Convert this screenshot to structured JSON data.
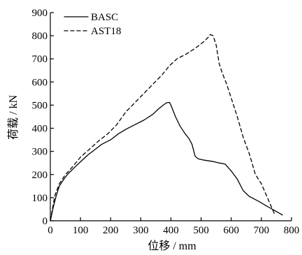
{
  "chart_data": {
    "type": "line",
    "title": "",
    "xlabel": "位移 / mm",
    "ylabel": "荷载 / kN",
    "xlim": [
      0,
      800
    ],
    "ylim": [
      0,
      900
    ],
    "xticks": [
      0,
      100,
      200,
      300,
      400,
      500,
      600,
      700,
      800
    ],
    "yticks": [
      0,
      100,
      200,
      300,
      400,
      500,
      600,
      700,
      800,
      900
    ],
    "grid": false,
    "legend_position": "top-left",
    "series": [
      {
        "name": "BASC",
        "style": "solid",
        "color": "#000000",
        "x": [
          0,
          10,
          20,
          30,
          45,
          60,
          80,
          100,
          125,
          150,
          170,
          200,
          225,
          250,
          280,
          310,
          340,
          360,
          375,
          385,
          395,
          400,
          415,
          430,
          445,
          460,
          470,
          480,
          490,
          510,
          540,
          560,
          580,
          600,
          620,
          640,
          660,
          690,
          720,
          750,
          770
        ],
        "y": [
          0,
          60,
          110,
          150,
          180,
          205,
          230,
          255,
          285,
          310,
          330,
          350,
          375,
          395,
          415,
          435,
          460,
          485,
          500,
          510,
          512,
          500,
          450,
          410,
          380,
          355,
          330,
          280,
          268,
          262,
          256,
          250,
          245,
          215,
          180,
          130,
          105,
          85,
          62,
          40,
          25
        ]
      },
      {
        "name": "AST18",
        "style": "dashed",
        "color": "#000000",
        "x": [
          0,
          15,
          30,
          50,
          75,
          100,
          130,
          160,
          190,
          220,
          250,
          280,
          310,
          340,
          370,
          395,
          420,
          450,
          480,
          510,
          525,
          530,
          540,
          550,
          560,
          570,
          585,
          600,
          620,
          640,
          660,
          680,
          700,
          720,
          745
        ],
        "y": [
          0,
          110,
          160,
          200,
          235,
          275,
          310,
          345,
          375,
          415,
          470,
          510,
          550,
          590,
          630,
          670,
          700,
          720,
          745,
          775,
          795,
          805,
          800,
          760,
          680,
          640,
          590,
          530,
          450,
          360,
          290,
          200,
          160,
          100,
          25
        ]
      }
    ]
  }
}
